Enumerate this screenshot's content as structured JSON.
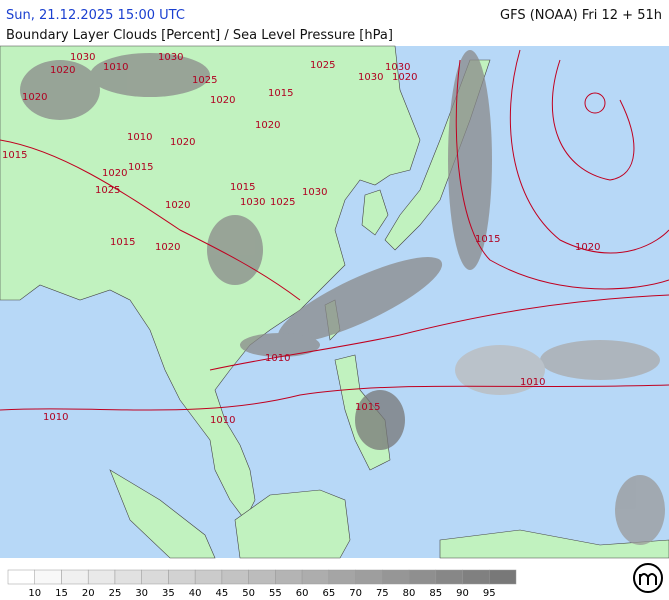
{
  "header": {
    "date": "Sun, 21.12.2025 15:00 UTC",
    "model": "GFS (NOAA) Fri 12 + 51h",
    "title": "Boundary Layer Clouds [Percent] / Sea Level Pressure [hPa]"
  },
  "isobars": [
    "1030",
    "1020",
    "1020",
    "1010",
    "1025",
    "1030",
    "1020",
    "1015",
    "1020",
    "1010",
    "1020",
    "1015",
    "1020",
    "1025",
    "1020",
    "1030",
    "1030",
    "1025",
    "1030",
    "1015",
    "1020",
    "1015",
    "1025",
    "1020",
    "1015",
    "1010",
    "1010",
    "1010",
    "1010",
    "1015",
    "1030",
    "1015",
    "1020"
  ],
  "legend": {
    "labels": [
      "10",
      "15",
      "20",
      "25",
      "30",
      "35",
      "40",
      "45",
      "50",
      "55",
      "60",
      "65",
      "70",
      "75",
      "80",
      "85",
      "90",
      "95"
    ]
  }
}
